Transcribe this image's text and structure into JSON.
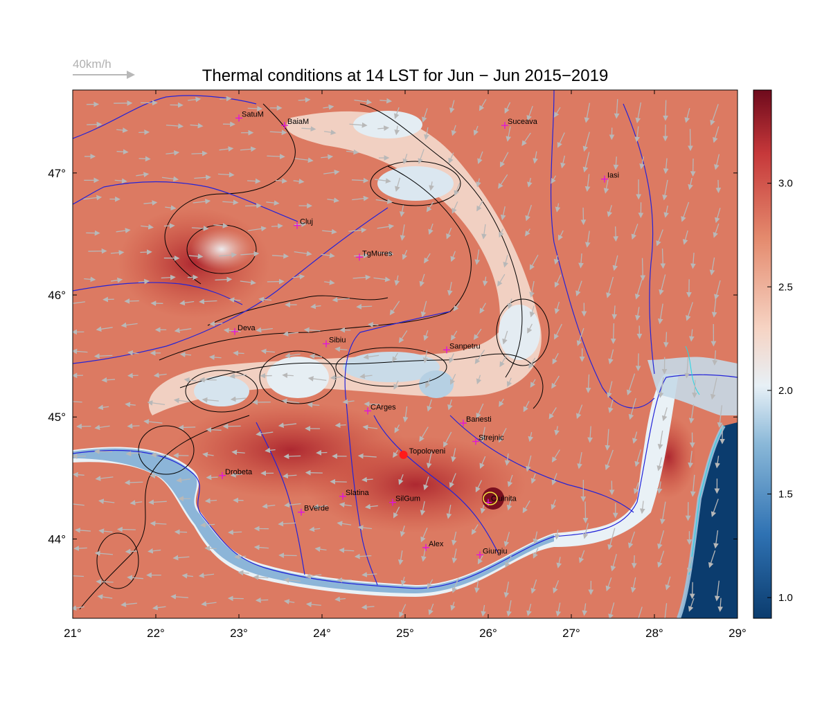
{
  "title": "Thermal conditions at 14 LST for Jun − Jun  2015−2019",
  "wind_scale": {
    "label": "40km/h",
    "color": "#b0b0b0"
  },
  "map": {
    "lon_range": [
      21,
      29
    ],
    "lat_range": [
      43.35,
      47.68
    ],
    "x_ticks": [
      {
        "value": 21,
        "label": "21°"
      },
      {
        "value": 22,
        "label": "22°"
      },
      {
        "value": 23,
        "label": "23°"
      },
      {
        "value": 24,
        "label": "24°"
      },
      {
        "value": 25,
        "label": "25°"
      },
      {
        "value": 26,
        "label": "26°"
      },
      {
        "value": 27,
        "label": "27°"
      },
      {
        "value": 28,
        "label": "28°"
      },
      {
        "value": 29,
        "label": "29°"
      }
    ],
    "y_ticks": [
      {
        "value": 44,
        "label": "44°"
      },
      {
        "value": 45,
        "label": "45°"
      },
      {
        "value": 46,
        "label": "46°"
      },
      {
        "value": 47,
        "label": "47°"
      }
    ],
    "cities": [
      {
        "name": "SatuM",
        "lon": 23.0,
        "lat": 47.45
      },
      {
        "name": "BaiaM",
        "lon": 23.55,
        "lat": 47.39
      },
      {
        "name": "Suceava",
        "lon": 26.2,
        "lat": 47.39
      },
      {
        "name": "Iasi",
        "lon": 27.4,
        "lat": 46.95
      },
      {
        "name": "Cluj",
        "lon": 23.7,
        "lat": 46.57
      },
      {
        "name": "TgMures",
        "lon": 24.45,
        "lat": 46.31
      },
      {
        "name": "Deva",
        "lon": 22.95,
        "lat": 45.7
      },
      {
        "name": "Sibiu",
        "lon": 24.05,
        "lat": 45.6
      },
      {
        "name": "Sanpetru",
        "lon": 25.5,
        "lat": 45.55
      },
      {
        "name": "CArges",
        "lon": 24.55,
        "lat": 45.05
      },
      {
        "name": "Banesti",
        "lon": 25.7,
        "lat": 44.95
      },
      {
        "name": "Strejnic",
        "lon": 25.85,
        "lat": 44.8
      },
      {
        "name": "Drobeta",
        "lon": 22.8,
        "lat": 44.52
      },
      {
        "name": "Slatina",
        "lon": 24.25,
        "lat": 44.35
      },
      {
        "name": "SilGum",
        "lon": 24.85,
        "lat": 44.3
      },
      {
        "name": "Ciulnita",
        "lon": 26.0,
        "lat": 44.3
      },
      {
        "name": "BVerde",
        "lon": 23.75,
        "lat": 44.22
      },
      {
        "name": "Alex",
        "lon": 25.25,
        "lat": 43.93
      },
      {
        "name": "Giurgiu",
        "lon": 25.9,
        "lat": 43.87
      }
    ],
    "highlight_site": {
      "name": "Topoloveni",
      "lon": 24.98,
      "lat": 44.69,
      "color": "#ff1a1a"
    }
  },
  "colorbar": {
    "range": [
      0.9,
      3.45
    ],
    "ticks": [
      {
        "value": 1.0,
        "label": "1.0"
      },
      {
        "value": 1.5,
        "label": "1.5"
      },
      {
        "value": 2.0,
        "label": "2.0"
      },
      {
        "value": 2.5,
        "label": "2.5"
      },
      {
        "value": 3.0,
        "label": "3.0"
      }
    ],
    "colors": [
      "#0b3c6e",
      "#2f72b3",
      "#8ab8d8",
      "#e7f0f6",
      "#f6d3c3",
      "#e48a6d",
      "#c6383a",
      "#6e0a1c"
    ]
  }
}
